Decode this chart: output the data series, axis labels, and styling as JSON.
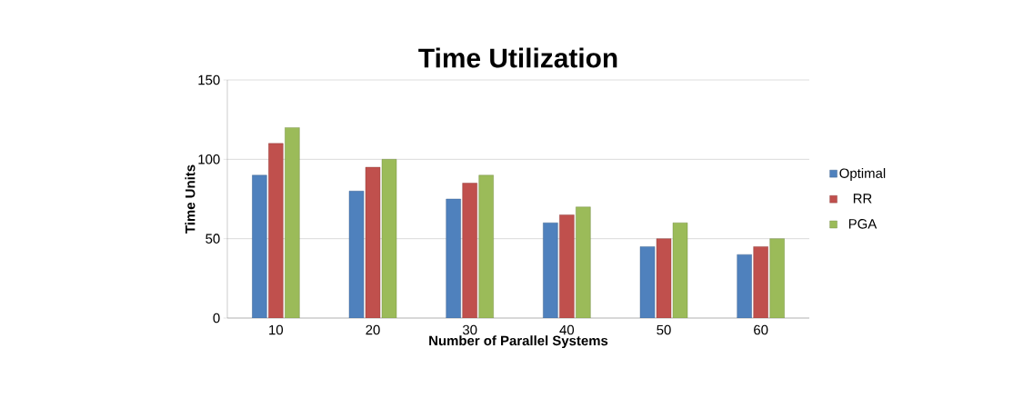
{
  "chart_data": {
    "type": "bar",
    "title": "Time Utilization",
    "xlabel": "Number of Parallel Systems",
    "ylabel": "Time Units",
    "categories": [
      "10",
      "20",
      "30",
      "40",
      "50",
      "60"
    ],
    "series": [
      {
        "name": "Optimal",
        "color": "#4f81bd",
        "values": [
          90,
          80,
          75,
          60,
          45,
          40
        ]
      },
      {
        "name": "RR",
        "color": "#c0504d",
        "values": [
          110,
          95,
          85,
          65,
          50,
          45
        ]
      },
      {
        "name": "PGA",
        "color": "#9bbb59",
        "values": [
          120,
          100,
          90,
          70,
          60,
          50
        ]
      }
    ],
    "ylim": [
      0,
      150
    ],
    "yticks": [
      0,
      50,
      100,
      150
    ],
    "grid": "y",
    "legend": "right"
  }
}
